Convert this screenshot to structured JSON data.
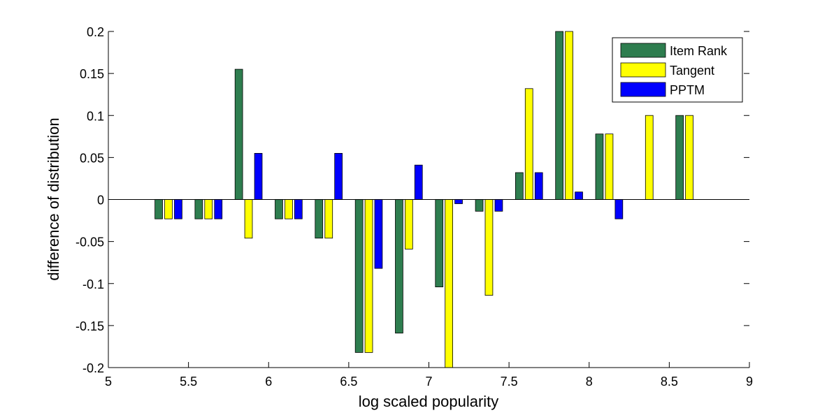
{
  "chart_data": {
    "type": "bar",
    "xlabel": "log scaled popularity",
    "ylabel": "difference of distribution",
    "xlim": [
      5,
      9
    ],
    "ylim": [
      -0.2,
      0.2
    ],
    "xticks": [
      "5",
      "5.5",
      "6",
      "6.5",
      "7",
      "7.5",
      "8",
      "8.5",
      "9"
    ],
    "yticks": [
      "-0.2",
      "-0.15",
      "-0.1",
      "-0.05",
      "0",
      "0.05",
      "0.1",
      "0.15",
      "0.2"
    ],
    "x": [
      5.375,
      5.625,
      5.875,
      6.125,
      6.375,
      6.625,
      6.875,
      7.125,
      7.375,
      7.625,
      7.875,
      8.125,
      8.375,
      8.625
    ],
    "legend_position": "top-right",
    "series": [
      {
        "name": "Item Rank",
        "color": "#2e7d4f",
        "values": [
          -0.023,
          -0.023,
          0.155,
          -0.023,
          -0.046,
          -0.182,
          -0.159,
          -0.104,
          -0.014,
          0.032,
          0.2,
          0.078,
          0.0,
          0.1
        ]
      },
      {
        "name": "Tangent",
        "color": "#ffff00",
        "values": [
          -0.023,
          -0.023,
          -0.046,
          -0.023,
          -0.046,
          -0.182,
          -0.059,
          -0.2,
          -0.114,
          0.132,
          0.2,
          0.078,
          0.1,
          0.1
        ]
      },
      {
        "name": "PPTM",
        "color": "#0000ff",
        "values": [
          -0.023,
          -0.023,
          0.055,
          -0.023,
          0.055,
          -0.082,
          0.041,
          -0.005,
          -0.014,
          0.032,
          0.009,
          -0.023,
          0.0,
          0.0
        ]
      }
    ]
  }
}
